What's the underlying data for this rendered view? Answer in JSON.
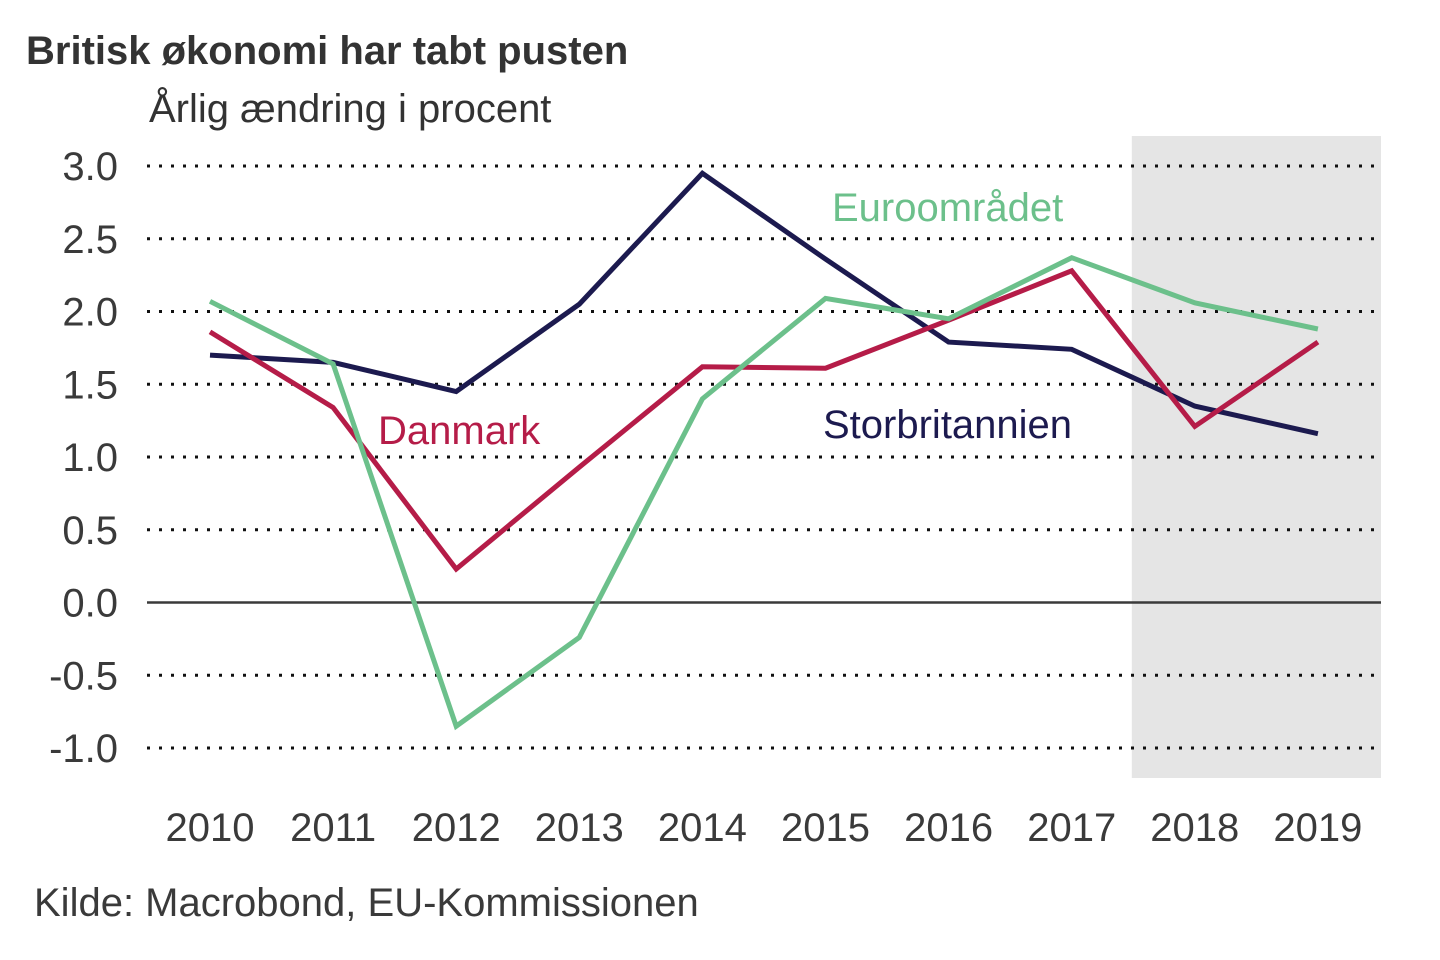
{
  "chart_data": {
    "type": "line",
    "title": "Britisk økonomi har tabt pusten",
    "subtitle": "Årlig ændring i procent",
    "source": "Kilde: Macrobond, EU-Kommissionen",
    "xlabel": "",
    "ylabel": "Årlig ændring i procent",
    "x": [
      "2010",
      "2011",
      "2012",
      "2013",
      "2014",
      "2015",
      "2016",
      "2017",
      "2018",
      "2019"
    ],
    "ylim": [
      -1.0,
      3.0
    ],
    "yticks": [
      "3.0",
      "2.5",
      "2.0",
      "1.5",
      "1.0",
      "0.5",
      "0.0",
      "-0.5",
      "-1.0"
    ],
    "ytick_values": [
      3.0,
      2.5,
      2.0,
      1.5,
      1.0,
      0.5,
      0.0,
      -0.5,
      -1.0
    ],
    "grid": "dotted horizontal",
    "forecast_shading": {
      "from": "2018",
      "to": "2019",
      "color": "#e5e5e5"
    },
    "series": [
      {
        "name": "Storbritannien",
        "color": "#1c1a4f",
        "values": [
          1.7,
          1.65,
          1.45,
          2.05,
          2.95,
          2.36,
          1.79,
          1.74,
          1.35,
          1.16
        ]
      },
      {
        "name": "Danmark",
        "color": "#b51c48",
        "values": [
          1.86,
          1.34,
          0.23,
          0.93,
          1.62,
          1.61,
          1.94,
          2.28,
          1.21,
          1.79
        ]
      },
      {
        "name": "Euroområdet",
        "color": "#6cc08b",
        "values": [
          2.07,
          1.64,
          -0.85,
          -0.24,
          1.4,
          2.09,
          1.95,
          2.37,
          2.06,
          1.88
        ]
      }
    ],
    "annotations": [
      {
        "text": "Euroområdet",
        "series": "Euroområdet",
        "near": "2016"
      },
      {
        "text": "Danmark",
        "series": "Danmark",
        "near": "2012"
      },
      {
        "text": "Storbritannien",
        "series": "Storbritannien",
        "near": "2016"
      }
    ]
  }
}
